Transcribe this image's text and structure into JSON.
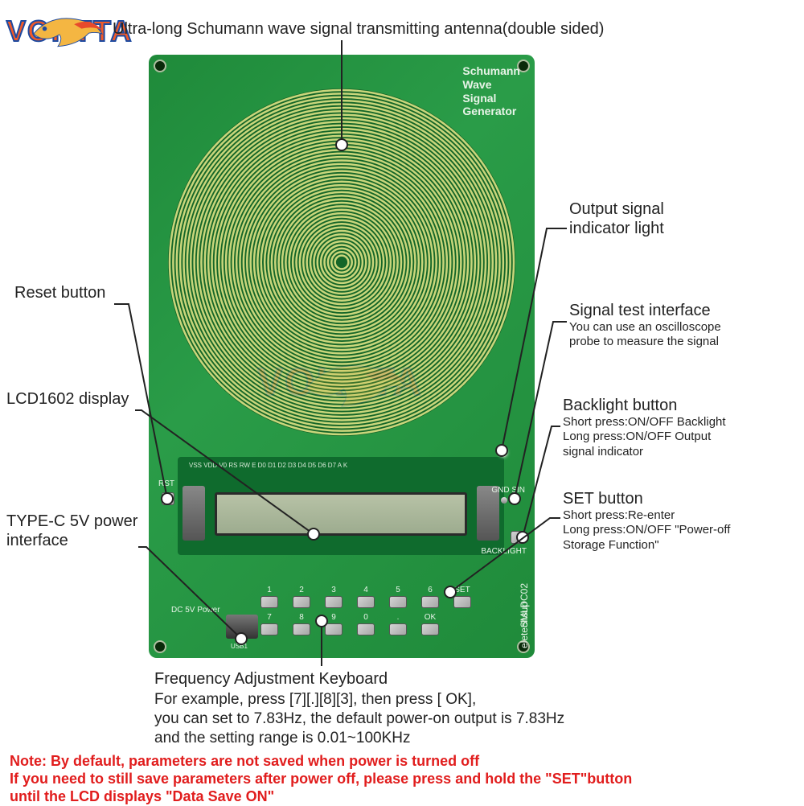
{
  "logo": {
    "text": "VOKTTA",
    "text_color": "#f05a28",
    "outline_color": "#1e4aa0",
    "fish_body_color": "#f4b642",
    "fish_fin_color": "#e84a2c"
  },
  "watermark": {
    "text": "VOKTTA"
  },
  "pcb": {
    "board_color": "#1f8a3a",
    "title_lines": [
      "Schumann",
      "Wave",
      "Signal",
      "Generator"
    ],
    "side_brand": "eletechsup",
    "model": "SMLDC02",
    "power_label": "DC 5V Power",
    "usb_label": "USB1",
    "signal_pins": "GND  SIN",
    "lcd": {
      "module_color": "#0f6b2d",
      "screen_color": "#b7c2a6",
      "pin_labels": "VSS VDD V0  RS  RW  E   D0  D1  D2  D3  D4  D5  D6  D7  A   K"
    },
    "spiral": {
      "trace_color": "#c9d67b",
      "gap_color": "#176d2a",
      "rings": 48
    },
    "keypad": {
      "row1": [
        "1",
        "2",
        "3",
        "4",
        "5",
        "6",
        "SET"
      ],
      "row2": [
        "7",
        "8",
        "9",
        "0",
        ".",
        "OK",
        ""
      ]
    },
    "buttons": {
      "reset_label": "RST",
      "backlight_label": "BACKLIGHT",
      "set_label": "SET"
    }
  },
  "callouts": {
    "antenna": "Ultra-long Schumann wave signal transmitting antenna(double sided)",
    "output_indicator": "Output signal\nindicator light",
    "reset": "Reset button",
    "signal_test_title": "Signal test interface",
    "signal_test_sub": "You can use an oscilloscope\nprobe to measure the signal",
    "lcd": "LCD1602 display",
    "backlight_title": "Backlight button",
    "backlight_sub": "Short press:ON/OFF Backlight\nLong press:ON/OFF Output\n                        signal indicator",
    "set_title": "SET button",
    "set_sub": "Short press:Re-enter\nLong press:ON/OFF \"Power-off\nStorage Function\"",
    "typec": "TYPE-C 5V power\ninterface",
    "freq_title": "Frequency Adjustment Keyboard",
    "freq_body": "For example, press [7][.][8][3], then press [ OK],\nyou can set to 7.83Hz, the default power-on output is 7.83Hz\nand the setting range is 0.01~100KHz"
  },
  "note": {
    "text": "Note: By default, parameters are not saved when power is turned off\nIf you need to still save parameters after power off, please press and hold the \"SET\"button\nuntil the LCD displays \"Data Save ON\"",
    "color": "#e11d1d"
  },
  "colors": {
    "text": "#222222",
    "bg": "#ffffff"
  }
}
